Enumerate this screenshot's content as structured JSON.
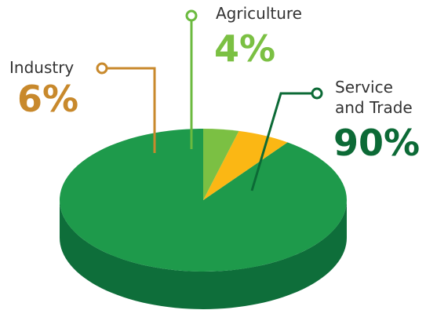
{
  "chart_data": {
    "type": "pie",
    "style": "3d",
    "slices": [
      {
        "label": "Service and Trade",
        "label_lines": [
          "Service",
          "and Trade"
        ],
        "value": 90,
        "value_text": "90%",
        "color": "#1e9a4b",
        "side_color": "#0e6e3a",
        "leader_color": "#0c6a36"
      },
      {
        "label": "Industry",
        "label_lines": [
          "Industry"
        ],
        "value": 6,
        "value_text": "6%",
        "color": "#fbb714",
        "side_color": "#d99a0a",
        "leader_color": "#c8892c"
      },
      {
        "label": "Agriculture",
        "label_lines": [
          "Agriculture"
        ],
        "value": 4,
        "value_text": "4%",
        "color": "#7bc043",
        "side_color": "#5a9a2e",
        "leader_color": "#6bba3f"
      }
    ]
  }
}
